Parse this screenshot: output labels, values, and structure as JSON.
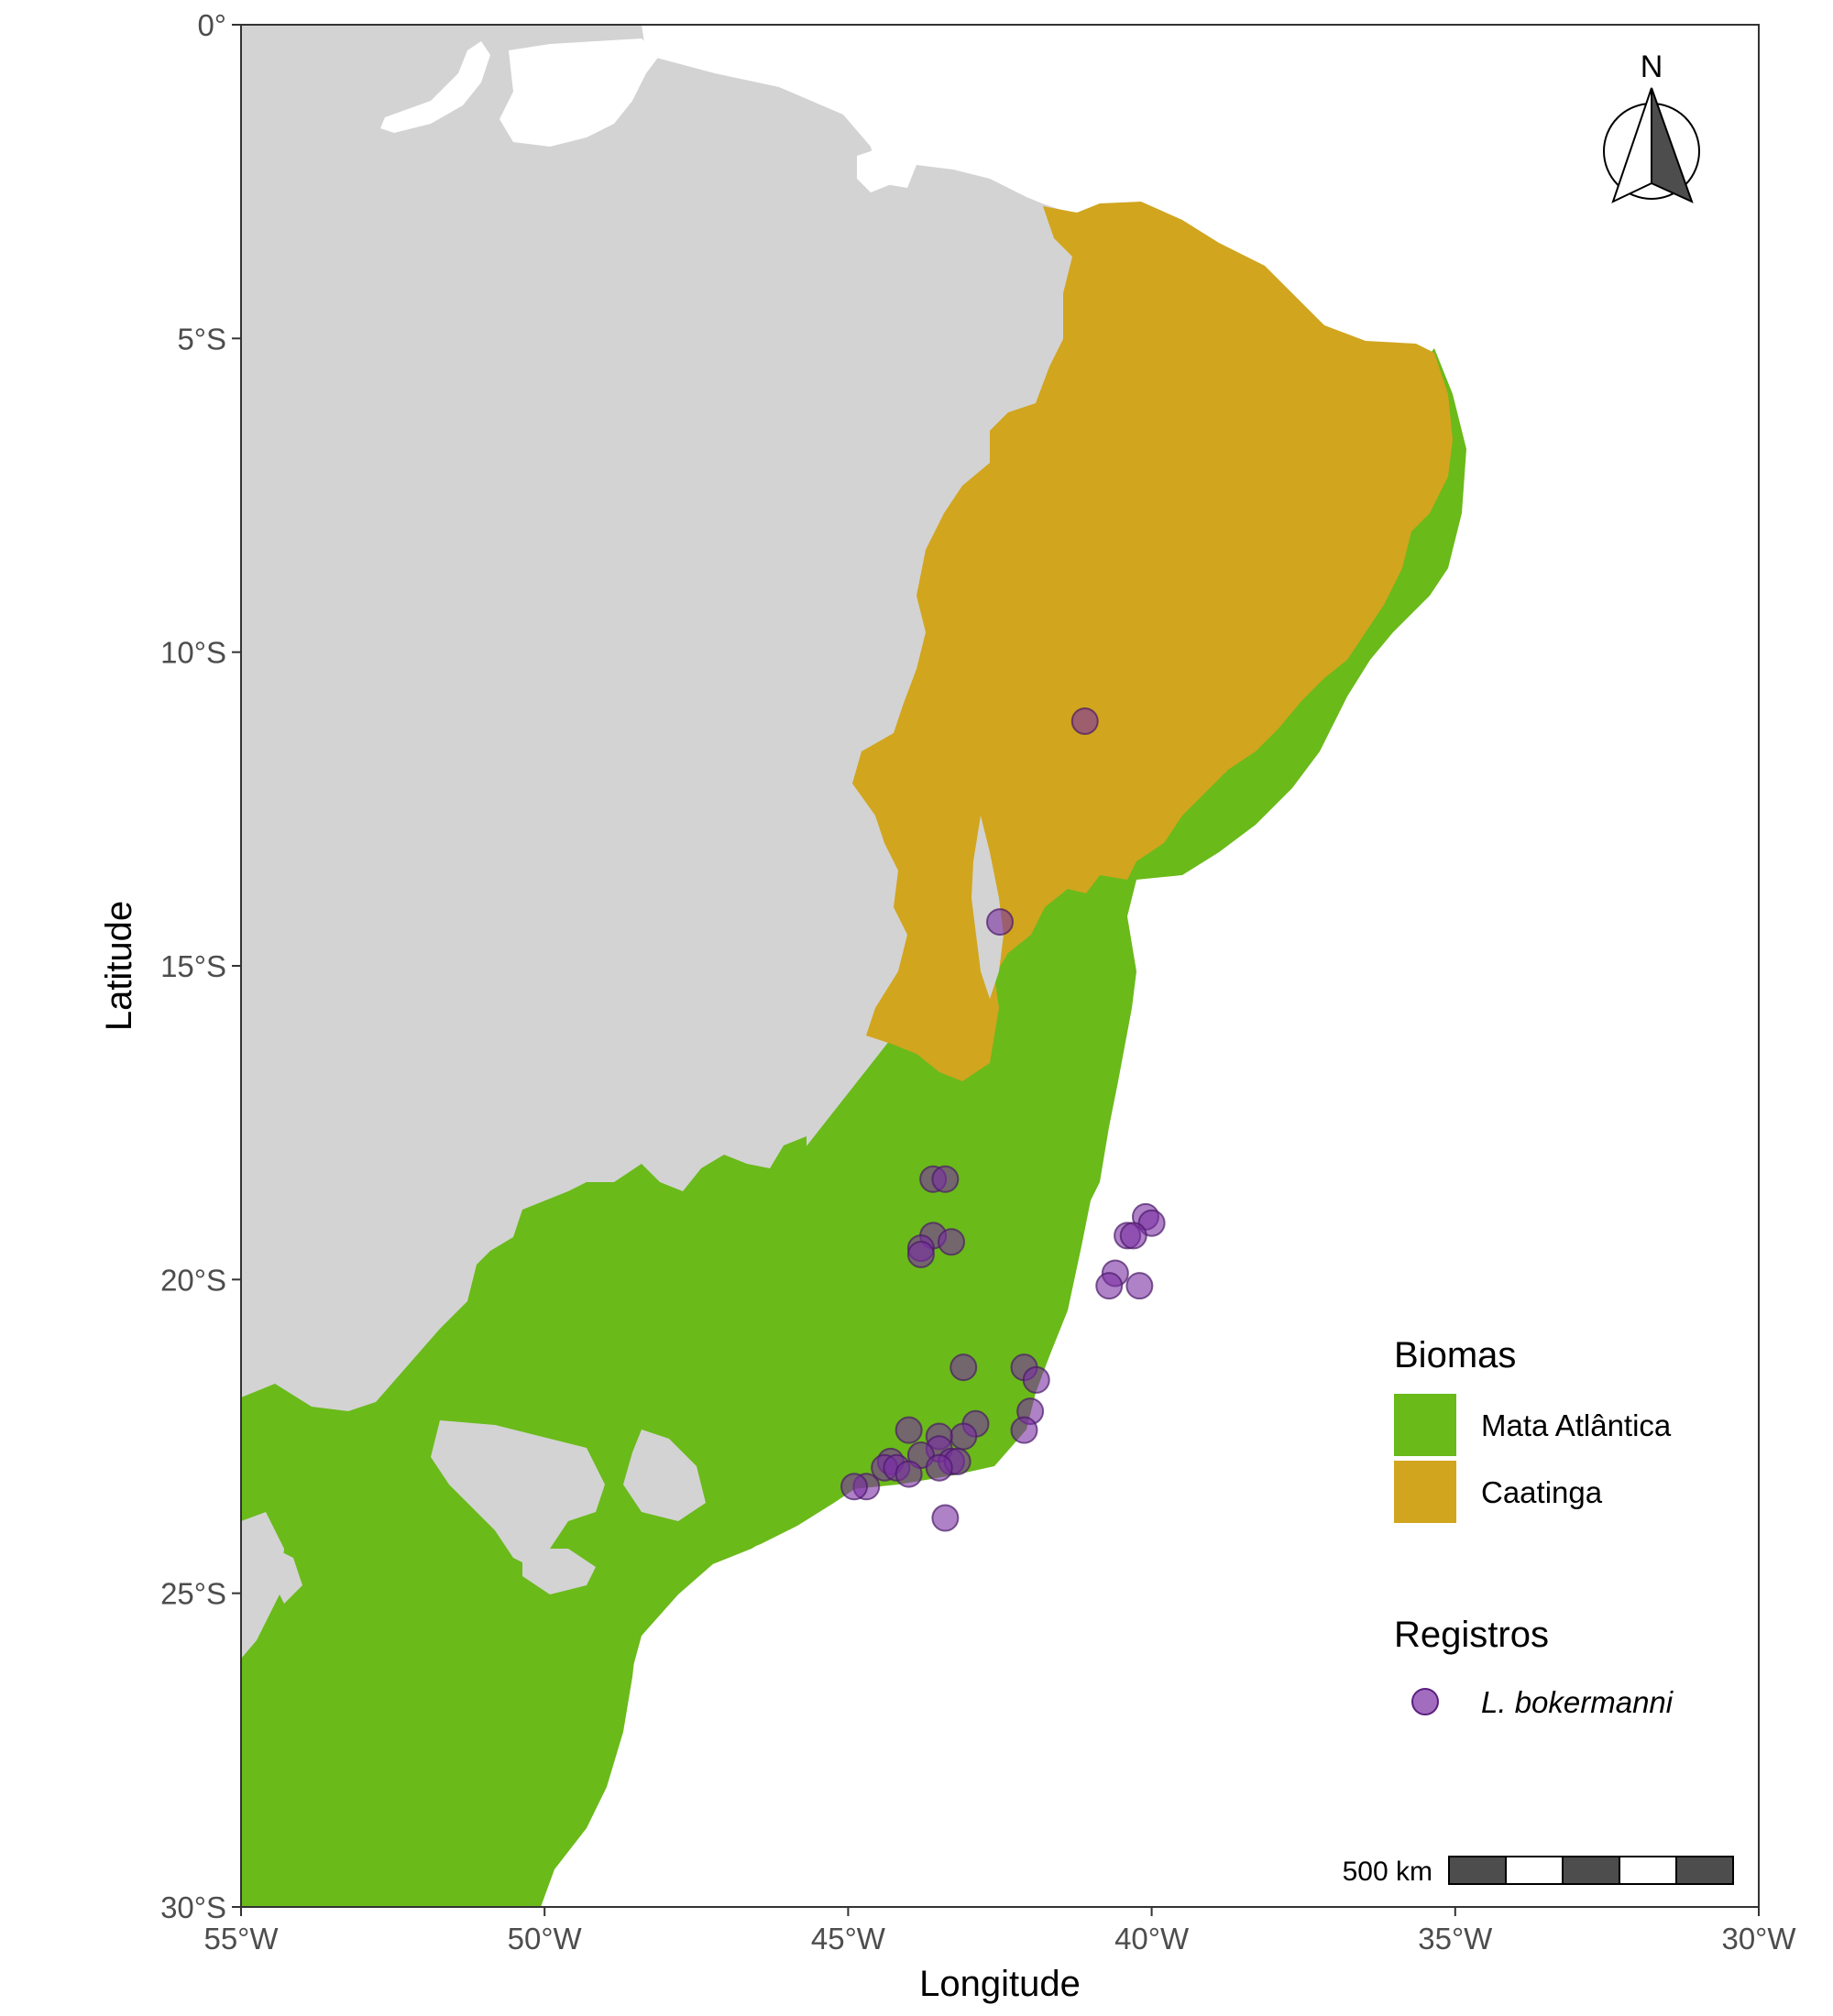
{
  "map": {
    "xlabel": "Longitude",
    "ylabel": "Latitude",
    "xlim": [
      -55,
      -30
    ],
    "ylim": [
      -30,
      0
    ],
    "x_ticks": [
      {
        "value": -55,
        "label": "55°W"
      },
      {
        "value": -50,
        "label": "50°W"
      },
      {
        "value": -45,
        "label": "45°W"
      },
      {
        "value": -40,
        "label": "40°W"
      },
      {
        "value": -35,
        "label": "35°W"
      },
      {
        "value": -30,
        "label": "30°W"
      }
    ],
    "y_ticks": [
      {
        "value": 0,
        "label": "0°"
      },
      {
        "value": -5,
        "label": "5°S"
      },
      {
        "value": -10,
        "label": "10°S"
      },
      {
        "value": -15,
        "label": "15°S"
      },
      {
        "value": -20,
        "label": "20°S"
      },
      {
        "value": -25,
        "label": "25°S"
      },
      {
        "value": -30,
        "label": "30°S"
      }
    ],
    "grid": false,
    "north_arrow_label": "N",
    "scale_bar_label": "500 km",
    "colors": {
      "land": "#d3d3d3",
      "mata_atlantica": "#6aba1a",
      "caatinga": "#d1a51e",
      "records": "#7a2fa3",
      "background": "#ffffff"
    }
  },
  "legend": {
    "placement": "right",
    "biomes_title": "Biomas",
    "biomes": [
      {
        "label": "Mata Atlântica",
        "color": "#6aba1a"
      },
      {
        "label": "Caatinga",
        "color": "#d1a51e"
      }
    ],
    "records_title": "Registros",
    "records_label": "L. bokermanni"
  },
  "chart_data": {
    "type": "scatter",
    "xlabel": "Longitude",
    "ylabel": "Latitude",
    "xlim": [
      -55,
      -30
    ],
    "ylim": [
      -30,
      0
    ],
    "series": [
      {
        "name": "L. bokermanni",
        "points": [
          {
            "x": -41.1,
            "y": -11.1
          },
          {
            "x": -42.5,
            "y": -14.3
          },
          {
            "x": -43.6,
            "y": -18.4
          },
          {
            "x": -43.4,
            "y": -18.4
          },
          {
            "x": -43.6,
            "y": -19.3
          },
          {
            "x": -43.3,
            "y": -19.4
          },
          {
            "x": -43.8,
            "y": -19.5
          },
          {
            "x": -43.8,
            "y": -19.6
          },
          {
            "x": -40.1,
            "y": -19.0
          },
          {
            "x": -40.0,
            "y": -19.1
          },
          {
            "x": -40.4,
            "y": -19.3
          },
          {
            "x": -40.3,
            "y": -19.3
          },
          {
            "x": -40.6,
            "y": -19.9
          },
          {
            "x": -40.7,
            "y": -20.1
          },
          {
            "x": -40.2,
            "y": -20.1
          },
          {
            "x": -43.1,
            "y": -21.4
          },
          {
            "x": -42.1,
            "y": -21.4
          },
          {
            "x": -41.9,
            "y": -21.6
          },
          {
            "x": -42.0,
            "y": -22.1
          },
          {
            "x": -42.1,
            "y": -22.4
          },
          {
            "x": -42.9,
            "y": -22.3
          },
          {
            "x": -44.0,
            "y": -22.4
          },
          {
            "x": -43.1,
            "y": -22.5
          },
          {
            "x": -43.5,
            "y": -22.5
          },
          {
            "x": -43.5,
            "y": -22.7
          },
          {
            "x": -43.8,
            "y": -22.8
          },
          {
            "x": -43.3,
            "y": -22.9
          },
          {
            "x": -43.2,
            "y": -22.9
          },
          {
            "x": -44.3,
            "y": -22.9
          },
          {
            "x": -44.4,
            "y": -23.0
          },
          {
            "x": -44.2,
            "y": -23.0
          },
          {
            "x": -44.0,
            "y": -23.1
          },
          {
            "x": -43.5,
            "y": -23.0
          },
          {
            "x": -44.7,
            "y": -23.3
          },
          {
            "x": -44.9,
            "y": -23.3
          },
          {
            "x": -43.4,
            "y": -23.8
          }
        ]
      }
    ]
  }
}
